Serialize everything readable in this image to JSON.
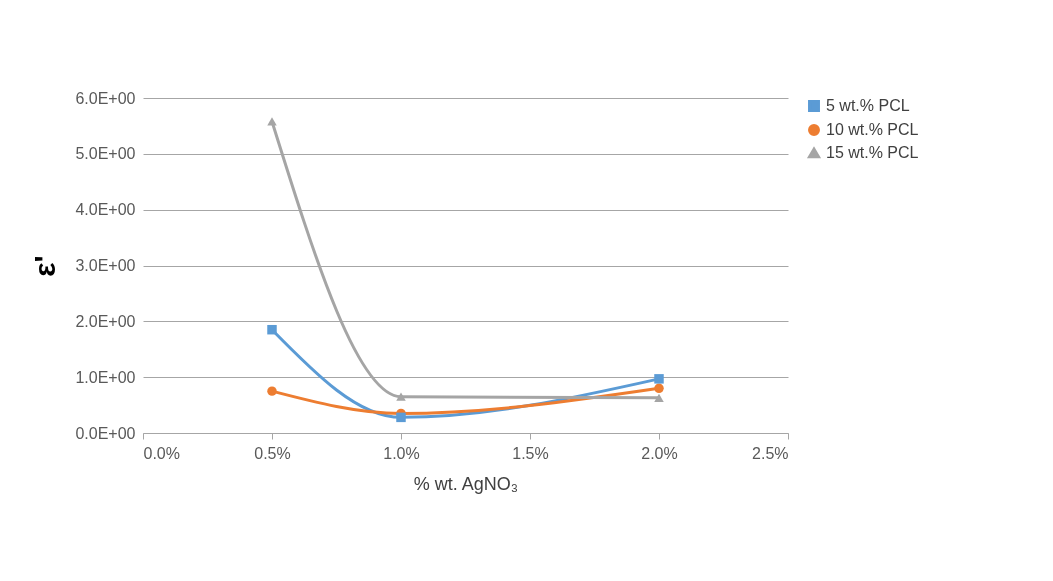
{
  "chart_data": {
    "type": "line",
    "xlabel": "% wt. AgNO₃",
    "ylabel": "ε'",
    "x": [
      0.5,
      1.0,
      2.0
    ],
    "series": [
      {
        "name": "5 wt.% PCL",
        "color": "#5b9bd5",
        "marker": "square",
        "values": [
          1.85,
          0.28,
          0.97
        ]
      },
      {
        "name": "10 wt.% PCL",
        "color": "#ed7d31",
        "marker": "circle",
        "values": [
          0.75,
          0.35,
          0.8
        ]
      },
      {
        "name": "15 wt.% PCL",
        "color": "#a5a5a5",
        "marker": "triangle",
        "values": [
          5.58,
          0.65,
          0.63
        ]
      }
    ],
    "xlim": [
      0,
      2.5
    ],
    "xticks": [
      {
        "value": 0,
        "label": "0.0%"
      },
      {
        "value": 0.5,
        "label": "0.5%"
      },
      {
        "value": 1,
        "label": "1.0%"
      },
      {
        "value": 1.5,
        "label": "1.5%"
      },
      {
        "value": 2,
        "label": "2.0%"
      },
      {
        "value": 2.5,
        "label": "2.5%"
      }
    ],
    "ylim": [
      0,
      6
    ],
    "yticks": [
      {
        "value": 0,
        "label": "0.0E+00"
      },
      {
        "value": 1,
        "label": "1.0E+00"
      },
      {
        "value": 2,
        "label": "2.0E+00"
      },
      {
        "value": 3,
        "label": "3.0E+00"
      },
      {
        "value": 4,
        "label": "4.0E+00"
      },
      {
        "value": 5,
        "label": "5.0E+00"
      },
      {
        "value": 6,
        "label": "6.0E+00"
      }
    ],
    "grid": "y",
    "legend": "right"
  }
}
